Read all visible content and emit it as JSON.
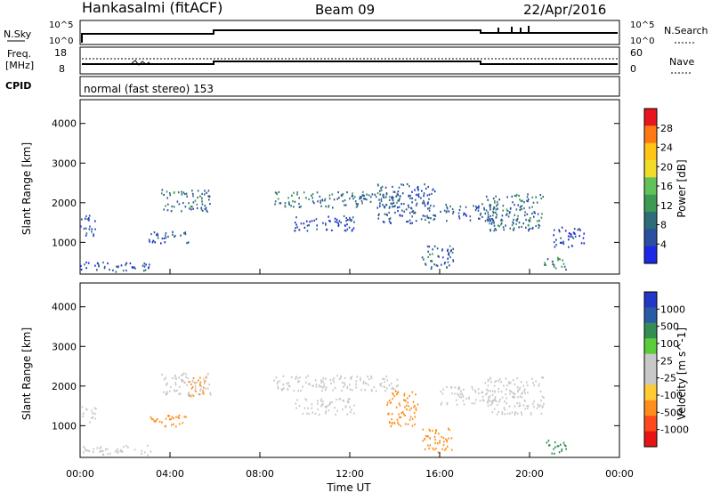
{
  "header": {
    "station": "Hankasalmi (fitACF)",
    "beam": "Beam 09",
    "date": "22/Apr/2016"
  },
  "summary": {
    "nsky_label": "N.Sky",
    "nsky_ticks": [
      "10^5",
      "10^0"
    ],
    "nsearch_label": "N.Search",
    "nsearch_ticks": [
      "10^5",
      "10^0"
    ],
    "freq_label": "Freq.",
    "freq_unit": "[MHz]",
    "freq_ticks": [
      "18",
      "8"
    ],
    "nave_label": "Nave",
    "nave_ticks": [
      "60",
      "0"
    ],
    "cpid_label": "CPID",
    "cpid_text": "normal (fast stereo) 153"
  },
  "colors": {
    "power_scale": [
      "#e8141e",
      "#ff7a12",
      "#ffc414",
      "#f2dc2a",
      "#62c25a",
      "#3c9a52",
      "#2e6c7a",
      "#2a4ea0",
      "#1c28e6"
    ],
    "velocity_scale": [
      "#2438c8",
      "#2a5ca6",
      "#338d54",
      "#5bcc3a",
      "#c8c8c8",
      "#c8c8c8",
      "#ffcc33",
      "#ff8f1c",
      "#ff4a1e",
      "#e61414"
    ]
  },
  "chart_data": [
    {
      "type": "heatmap",
      "name": "power",
      "ylabel": "Slant Range [km]",
      "y_ticks": [
        1000,
        2000,
        3000,
        4000
      ],
      "ylim": [
        200,
        4600
      ],
      "colorbar_label": "Power [dB]",
      "colorbar_ticks": [
        "4",
        "8",
        "12",
        "16",
        "20",
        "24",
        "28"
      ],
      "regions": [
        {
          "t0": 0.0,
          "t1": 0.7,
          "r0": 1150,
          "r1": 1450,
          "level": 0.25
        },
        {
          "t0": 0.0,
          "t1": 0.7,
          "r0": 1550,
          "r1": 1750,
          "level": 0.2
        },
        {
          "t0": 0.0,
          "t1": 3.2,
          "r0": 280,
          "r1": 520,
          "level": 0.3
        },
        {
          "t0": 3.0,
          "t1": 4.8,
          "r0": 1000,
          "r1": 1300,
          "level": 0.3
        },
        {
          "t0": 3.6,
          "t1": 5.8,
          "r0": 1800,
          "r1": 2350,
          "level": 0.45
        },
        {
          "t0": 8.6,
          "t1": 14.2,
          "r0": 1900,
          "r1": 2300,
          "level": 0.5
        },
        {
          "t0": 9.5,
          "t1": 12.2,
          "r0": 1300,
          "r1": 1700,
          "level": 0.25
        },
        {
          "t0": 13.2,
          "t1": 15.8,
          "r0": 1500,
          "r1": 2500,
          "level": 0.35
        },
        {
          "t0": 15.2,
          "t1": 16.6,
          "r0": 350,
          "r1": 950,
          "level": 0.4
        },
        {
          "t0": 16.0,
          "t1": 18.6,
          "r0": 1550,
          "r1": 2000,
          "level": 0.35
        },
        {
          "t0": 18.0,
          "t1": 20.6,
          "r0": 1300,
          "r1": 2250,
          "level": 0.45
        },
        {
          "t0": 21.0,
          "t1": 22.4,
          "r0": 900,
          "r1": 1400,
          "level": 0.2
        },
        {
          "t0": 20.6,
          "t1": 21.6,
          "r0": 300,
          "r1": 650,
          "level": 0.55
        }
      ]
    },
    {
      "type": "heatmap",
      "name": "velocity",
      "ylabel": "Slant Range [km]",
      "xlabel": "Time UT",
      "x_ticks": [
        "00:00",
        "04:00",
        "08:00",
        "12:00",
        "16:00",
        "20:00",
        "00:00"
      ],
      "y_ticks": [
        1000,
        2000,
        3000,
        4000
      ],
      "ylim": [
        200,
        4600
      ],
      "colorbar_label": "Velocity [m s^-1]",
      "colorbar_ticks": [
        "1000",
        "500",
        "100",
        "25",
        "-25",
        "-100",
        "-500",
        "-1000"
      ],
      "regions": [
        {
          "t0": 0.0,
          "t1": 0.7,
          "r0": 1100,
          "r1": 1500,
          "value": 0
        },
        {
          "t0": 0.0,
          "t1": 3.2,
          "r0": 280,
          "r1": 520,
          "value": 0
        },
        {
          "t0": 3.0,
          "t1": 4.8,
          "r0": 1000,
          "r1": 1300,
          "value": -120
        },
        {
          "t0": 3.6,
          "t1": 5.8,
          "r0": 1800,
          "r1": 2350,
          "value": 0
        },
        {
          "t0": 4.8,
          "t1": 5.6,
          "r0": 1750,
          "r1": 2250,
          "value": -300
        },
        {
          "t0": 8.6,
          "t1": 14.2,
          "r0": 1900,
          "r1": 2300,
          "value": 0
        },
        {
          "t0": 9.5,
          "t1": 12.2,
          "r0": 1300,
          "r1": 1700,
          "value": 0
        },
        {
          "t0": 13.6,
          "t1": 15.0,
          "r0": 1000,
          "r1": 1900,
          "value": -300
        },
        {
          "t0": 15.2,
          "t1": 16.6,
          "r0": 350,
          "r1": 950,
          "value": -300
        },
        {
          "t0": 16.0,
          "t1": 18.6,
          "r0": 1550,
          "r1": 2000,
          "value": 0
        },
        {
          "t0": 18.0,
          "t1": 20.6,
          "r0": 1300,
          "r1": 2250,
          "value": 0
        },
        {
          "t0": 20.6,
          "t1": 21.6,
          "r0": 300,
          "r1": 650,
          "value": 150
        }
      ]
    }
  ]
}
